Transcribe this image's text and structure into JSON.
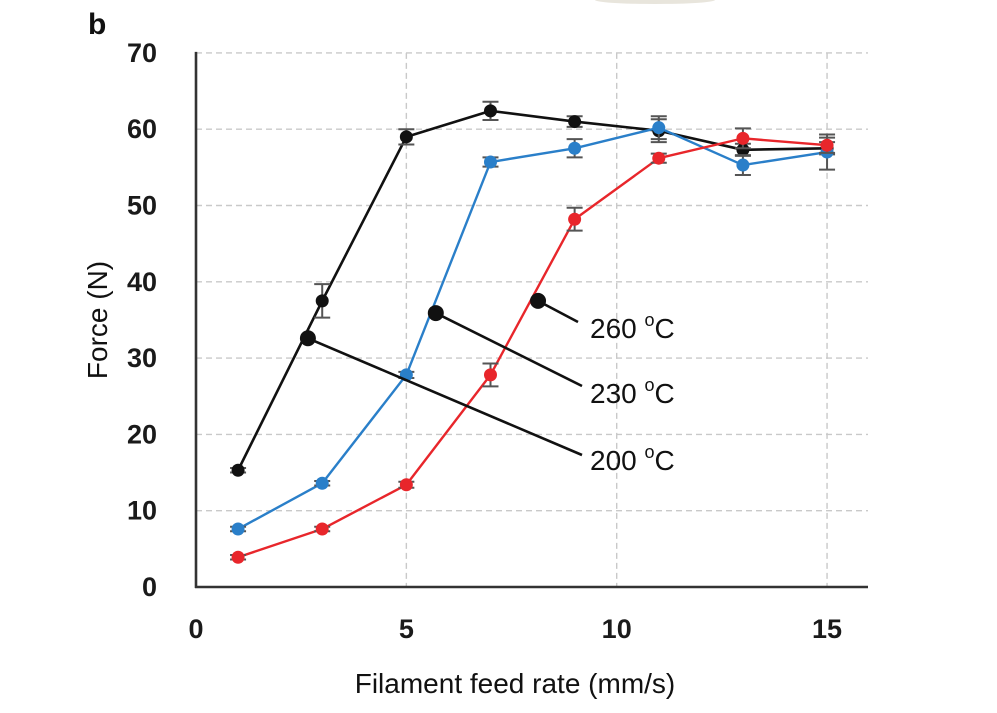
{
  "panel_label": "b",
  "chart_data": {
    "type": "line",
    "title": "",
    "xlabel": "Filament feed rate (mm/s)",
    "ylabel": "Force (N)",
    "xlim": [
      0,
      16
    ],
    "ylim": [
      0,
      70
    ],
    "x_ticks": [
      0,
      5,
      10,
      15
    ],
    "x_tick_labels": [
      "0",
      "5",
      "10",
      "15"
    ],
    "y_ticks": [
      0,
      10,
      20,
      30,
      40,
      50,
      60,
      70
    ],
    "y_tick_labels": [
      "0",
      "10",
      "20",
      "30",
      "40",
      "50",
      "60",
      "70"
    ],
    "grid": true,
    "x": [
      1,
      3,
      5,
      7,
      9,
      11,
      13,
      15
    ],
    "series": [
      {
        "name": "200 °C",
        "color": "#111111",
        "marker": "circle",
        "values": [
          15.3,
          37.5,
          59.0,
          62.4,
          61.0,
          59.8,
          57.3,
          57.5
        ],
        "errors": [
          0.3,
          2.2,
          1.0,
          1.2,
          0.7,
          1.5,
          0.8,
          0.8
        ]
      },
      {
        "name": "230 °C",
        "color": "#2a7fc9",
        "marker": "circle",
        "values": [
          7.6,
          13.6,
          27.8,
          55.7,
          57.5,
          60.2,
          55.3,
          57.0
        ],
        "errors": [
          0.3,
          0.3,
          0.4,
          0.6,
          1.2,
          1.5,
          1.3,
          2.3
        ]
      },
      {
        "name": "260 °C",
        "color": "#e8262b",
        "marker": "circle",
        "values": [
          3.9,
          7.6,
          13.4,
          27.8,
          48.2,
          56.2,
          58.8,
          57.9
        ],
        "errors": [
          0.3,
          0.3,
          0.4,
          1.5,
          1.5,
          0.6,
          1.3,
          1.0
        ]
      }
    ],
    "annotations": [
      {
        "text": "260",
        "unit_sup": "o",
        "unit": "C",
        "series": "260 °C",
        "point": [
          8.13,
          37.5
        ]
      },
      {
        "text": "230",
        "unit_sup": "o",
        "unit": "C",
        "series": "230 °C",
        "point": [
          5.7,
          35.9
        ]
      },
      {
        "text": "200",
        "unit_sup": "o",
        "unit": "C",
        "series": "200 °C",
        "point": [
          2.66,
          32.6
        ]
      }
    ],
    "legend": "callout labels right of center"
  }
}
